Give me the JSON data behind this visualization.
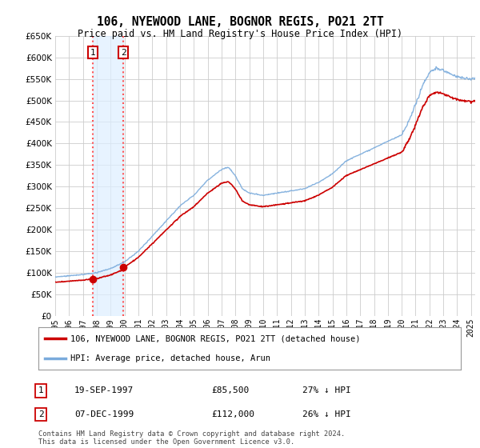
{
  "title": "106, NYEWOOD LANE, BOGNOR REGIS, PO21 2TT",
  "subtitle": "Price paid vs. HM Land Registry's House Price Index (HPI)",
  "legend_line1": "106, NYEWOOD LANE, BOGNOR REGIS, PO21 2TT (detached house)",
  "legend_line2": "HPI: Average price, detached house, Arun",
  "transaction1_label": "1",
  "transaction1_date": "19-SEP-1997",
  "transaction1_price": "£85,500",
  "transaction1_hpi": "27% ↓ HPI",
  "transaction2_label": "2",
  "transaction2_date": "07-DEC-1999",
  "transaction2_price": "£112,000",
  "transaction2_hpi": "26% ↓ HPI",
  "footnote": "Contains HM Land Registry data © Crown copyright and database right 2024.\nThis data is licensed under the Open Government Licence v3.0.",
  "hpi_color": "#7aabdc",
  "price_color": "#cc0000",
  "marker_color": "#cc0000",
  "vline_color": "#ff5555",
  "shade_color": "#ddeeff",
  "grid_color": "#cccccc",
  "background_color": "#ffffff",
  "ylim": [
    0,
    650000
  ],
  "yticks": [
    0,
    50000,
    100000,
    150000,
    200000,
    250000,
    300000,
    350000,
    400000,
    450000,
    500000,
    550000,
    600000,
    650000
  ],
  "transaction1_x": 1997.72,
  "transaction1_y": 85500,
  "transaction2_x": 1999.92,
  "transaction2_y": 112000,
  "xmin": 1995,
  "xmax": 2025.3
}
